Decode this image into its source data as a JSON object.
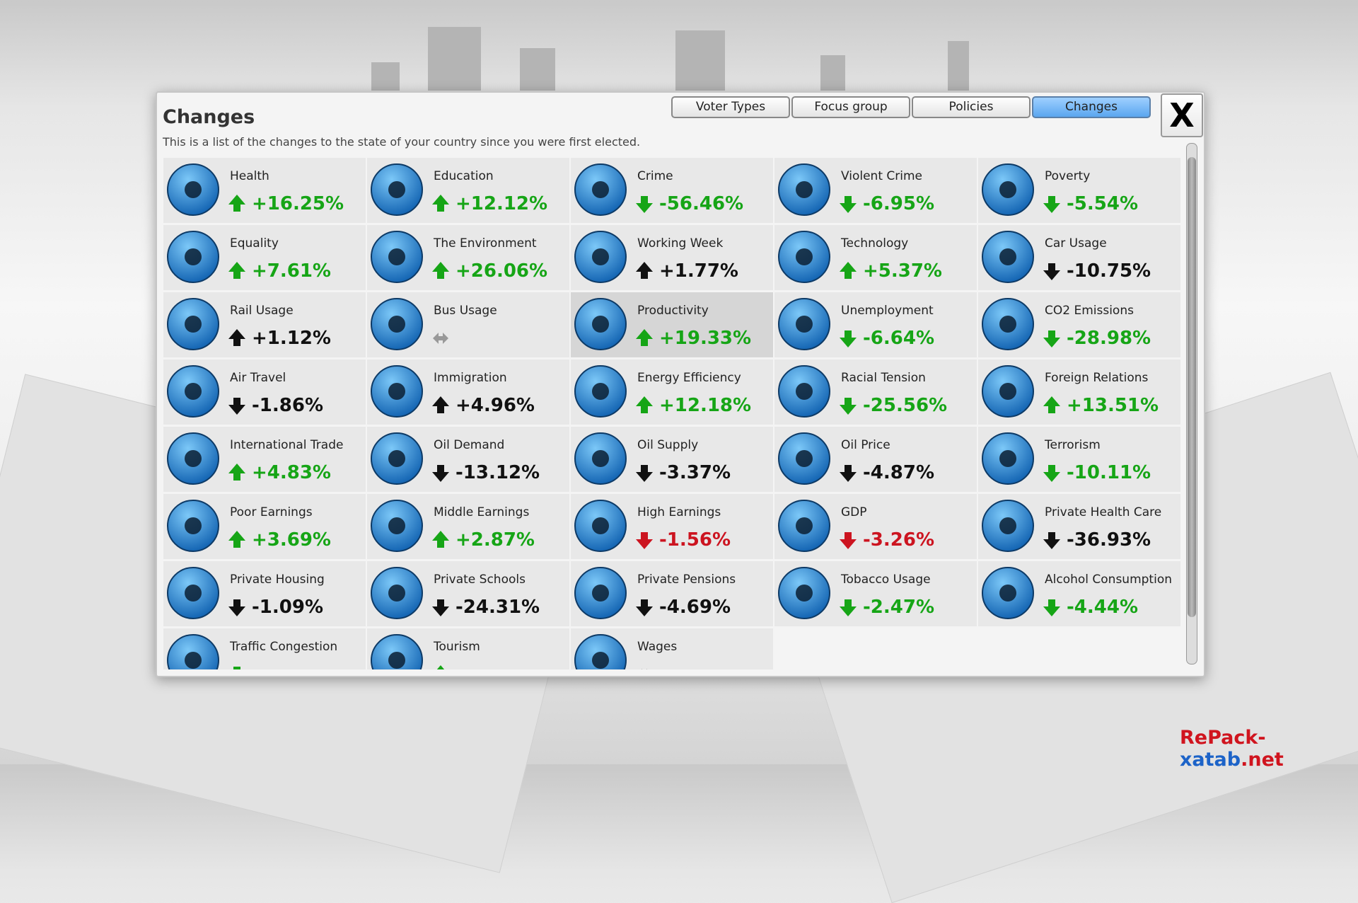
{
  "header": {
    "title": "Changes",
    "description": "This is a list of the changes to the state of your country since you were first elected."
  },
  "tabs": [
    {
      "label": "Voter Types",
      "active": false
    },
    {
      "label": "Focus group",
      "active": false
    },
    {
      "label": "Policies",
      "active": false
    },
    {
      "label": "Changes",
      "active": true
    }
  ],
  "close_label": "X",
  "cells": [
    {
      "label": "Health",
      "change": "+16.25%",
      "trend": "up",
      "tone": "good"
    },
    {
      "label": "Education",
      "change": "+12.12%",
      "trend": "up",
      "tone": "good"
    },
    {
      "label": "Crime",
      "change": "-56.46%",
      "trend": "down",
      "tone": "good"
    },
    {
      "label": "Violent Crime",
      "change": "-6.95%",
      "trend": "down",
      "tone": "good"
    },
    {
      "label": "Poverty",
      "change": "-5.54%",
      "trend": "down",
      "tone": "good"
    },
    {
      "label": "Equality",
      "change": "+7.61%",
      "trend": "up",
      "tone": "good"
    },
    {
      "label": "The Environment",
      "change": "+26.06%",
      "trend": "up",
      "tone": "good"
    },
    {
      "label": "Working Week",
      "change": "+1.77%",
      "trend": "up",
      "tone": "neutral"
    },
    {
      "label": "Technology",
      "change": "+5.37%",
      "trend": "up",
      "tone": "good"
    },
    {
      "label": "Car Usage",
      "change": "-10.75%",
      "trend": "down",
      "tone": "neutral"
    },
    {
      "label": "Rail Usage",
      "change": "+1.12%",
      "trend": "up",
      "tone": "neutral"
    },
    {
      "label": "Bus Usage",
      "trend": "none",
      "tone": "neutral"
    },
    {
      "label": "Productivity",
      "change": "+19.33%",
      "trend": "up",
      "tone": "good",
      "selected": true
    },
    {
      "label": "Unemployment",
      "change": "-6.64%",
      "trend": "down",
      "tone": "good"
    },
    {
      "label": "CO2 Emissions",
      "change": "-28.98%",
      "trend": "down",
      "tone": "good"
    },
    {
      "label": "Air Travel",
      "change": "-1.86%",
      "trend": "down",
      "tone": "neutral"
    },
    {
      "label": "Immigration",
      "change": "+4.96%",
      "trend": "up",
      "tone": "neutral"
    },
    {
      "label": "Energy Efficiency",
      "change": "+12.18%",
      "trend": "up",
      "tone": "good"
    },
    {
      "label": "Racial Tension",
      "change": "-25.56%",
      "trend": "down",
      "tone": "good"
    },
    {
      "label": "Foreign Relations",
      "change": "+13.51%",
      "trend": "up",
      "tone": "good"
    },
    {
      "label": "International Trade",
      "change": "+4.83%",
      "trend": "up",
      "tone": "good"
    },
    {
      "label": "Oil Demand",
      "change": "-13.12%",
      "trend": "down",
      "tone": "neutral"
    },
    {
      "label": "Oil Supply",
      "change": "-3.37%",
      "trend": "down",
      "tone": "neutral"
    },
    {
      "label": "Oil Price",
      "change": "-4.87%",
      "trend": "down",
      "tone": "neutral"
    },
    {
      "label": "Terrorism",
      "change": "-10.11%",
      "trend": "down",
      "tone": "good"
    },
    {
      "label": "Poor Earnings",
      "change": "+3.69%",
      "trend": "up",
      "tone": "good"
    },
    {
      "label": "Middle Earnings",
      "change": "+2.87%",
      "trend": "up",
      "tone": "good"
    },
    {
      "label": "High Earnings",
      "change": "-1.56%",
      "trend": "down",
      "tone": "bad"
    },
    {
      "label": "GDP",
      "change": "-3.26%",
      "trend": "down",
      "tone": "bad"
    },
    {
      "label": "Private Health Care",
      "change": "-36.93%",
      "trend": "down",
      "tone": "neutral"
    },
    {
      "label": "Private Housing",
      "change": "-1.09%",
      "trend": "down",
      "tone": "neutral"
    },
    {
      "label": "Private Schools",
      "change": "-24.31%",
      "trend": "down",
      "tone": "neutral"
    },
    {
      "label": "Private Pensions",
      "change": "-4.69%",
      "trend": "down",
      "tone": "neutral"
    },
    {
      "label": "Tobacco Usage",
      "change": "-2.47%",
      "trend": "down",
      "tone": "good"
    },
    {
      "label": "Alcohol Consumption",
      "change": "-4.44%",
      "trend": "down",
      "tone": "good"
    },
    {
      "label": "Traffic Congestion",
      "trend": "down",
      "tone": "good"
    },
    {
      "label": "Tourism",
      "trend": "up",
      "tone": "good"
    },
    {
      "label": "Wages",
      "trend": "none",
      "tone": "neutral"
    }
  ],
  "watermark": {
    "part1": "RePack-",
    "part2": "xatab",
    "part3": ".net"
  }
}
